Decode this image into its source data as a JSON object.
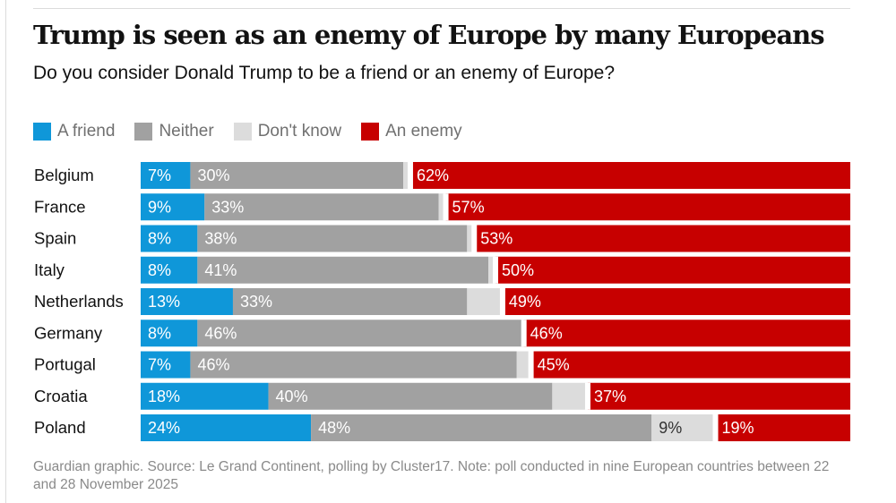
{
  "title": "Trump is seen as an enemy of Europe by many Europeans",
  "subtitle": "Do you consider Donald Trump to be a friend or an enemy of Europe?",
  "source": "Guardian graphic. Source: Le Grand Continent, polling by Cluster17. Note: poll conducted in nine European countries between 22 and 28 November 2025",
  "legend": [
    {
      "label": "A friend",
      "color": "#0f97d9"
    },
    {
      "label": "Neither",
      "color": "#a1a1a1"
    },
    {
      "label": "Don't know",
      "color": "#dcdcdc"
    },
    {
      "label": "An enemy",
      "color": "#c70000"
    }
  ],
  "chart_data": {
    "type": "bar",
    "stacked": true,
    "orientation": "horizontal",
    "categories": [
      "Belgium",
      "France",
      "Spain",
      "Italy",
      "Netherlands",
      "Germany",
      "Portugal",
      "Croatia",
      "Poland"
    ],
    "series": [
      {
        "name": "A friend",
        "color": "#0f97d9",
        "values": [
          7,
          9,
          8,
          8,
          13,
          8,
          7,
          18,
          24
        ],
        "labels": [
          "7%",
          "9%",
          "8%",
          "8%",
          "13%",
          "8%",
          "7%",
          "18%",
          "24%"
        ]
      },
      {
        "name": "Neither",
        "color": "#a1a1a1",
        "values": [
          30,
          33,
          38,
          41,
          33,
          46,
          46,
          40,
          48
        ],
        "labels": [
          "30%",
          "33%",
          "38%",
          "41%",
          "33%",
          "46%",
          "46%",
          "40%",
          "48%"
        ]
      },
      {
        "name": "Don't know",
        "color": "#dcdcdc",
        "values": [
          1,
          1,
          1,
          1,
          5,
          0,
          2,
          5,
          9
        ],
        "labels": [
          "",
          "",
          "",
          "",
          "",
          "",
          "",
          "",
          "9%"
        ]
      },
      {
        "name": "An enemy",
        "color": "#c70000",
        "values": [
          62,
          57,
          53,
          50,
          49,
          46,
          45,
          37,
          19
        ],
        "labels": [
          "62%",
          "57%",
          "53%",
          "50%",
          "49%",
          "46%",
          "45%",
          "37%",
          "19%"
        ]
      }
    ],
    "xlim": [
      0,
      100
    ],
    "grid": false,
    "legend_position": "top-left"
  }
}
